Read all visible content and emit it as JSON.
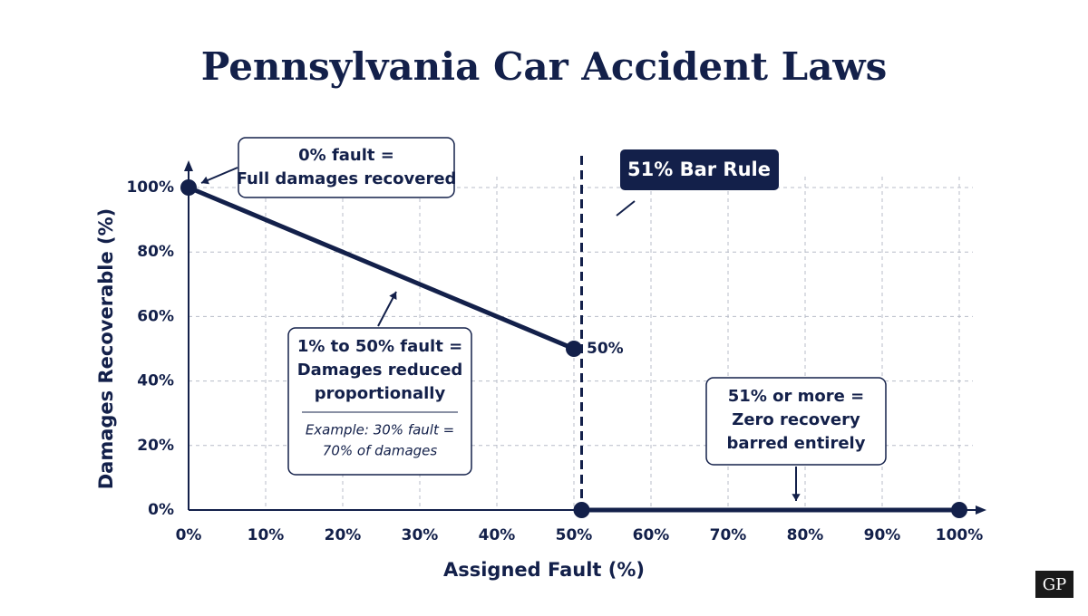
{
  "chart_data": {
    "type": "line",
    "title": "Pennsylvania Car Accident Laws",
    "x_label": "Assigned Fault (%)",
    "y_label": "Damages Recoverable (%)",
    "xlim": [
      0,
      100
    ],
    "ylim": [
      0,
      100
    ],
    "xticks": [
      {
        "value": 0,
        "label": "0%"
      },
      {
        "value": 10,
        "label": "10%"
      },
      {
        "value": 20,
        "label": "20%"
      },
      {
        "value": 30,
        "label": "30%"
      },
      {
        "value": 40,
        "label": "40%"
      },
      {
        "value": 50,
        "label": "50%"
      },
      {
        "value": 60,
        "label": "60%"
      },
      {
        "value": 70,
        "label": "70%"
      },
      {
        "value": 80,
        "label": "80%"
      },
      {
        "value": 90,
        "label": "90%"
      },
      {
        "value": 100,
        "label": "100%"
      }
    ],
    "yticks": [
      {
        "value": 0,
        "label": "0%"
      },
      {
        "value": 20,
        "label": "20%"
      },
      {
        "value": 40,
        "label": "40%"
      },
      {
        "value": 60,
        "label": "60%"
      },
      {
        "value": 80,
        "label": "80%"
      },
      {
        "value": 100,
        "label": "100%"
      }
    ],
    "grid": true,
    "series": [
      {
        "color": "#13204a",
        "x": [
          0,
          50
        ],
        "values": [
          100,
          50
        ],
        "value_labels": [
          null,
          "50%"
        ]
      },
      {
        "color": "#13204a",
        "x": [
          51,
          100
        ],
        "values": [
          0,
          0
        ]
      }
    ],
    "threshold": {
      "value": 51,
      "label": "51% Bar Rule"
    },
    "annotations": [
      {
        "lines": [
          "0% fault =",
          "Full damages recovered"
        ]
      },
      {
        "lines": [
          "1% to 50% fault =",
          "Damages reduced",
          "proportionally"
        ],
        "example": [
          "Example: 30% fault =",
          "70% of damages"
        ]
      },
      {
        "lines": [
          "51% or more =",
          "Zero recovery",
          "barred entirely"
        ]
      }
    ]
  },
  "watermark": "GP"
}
